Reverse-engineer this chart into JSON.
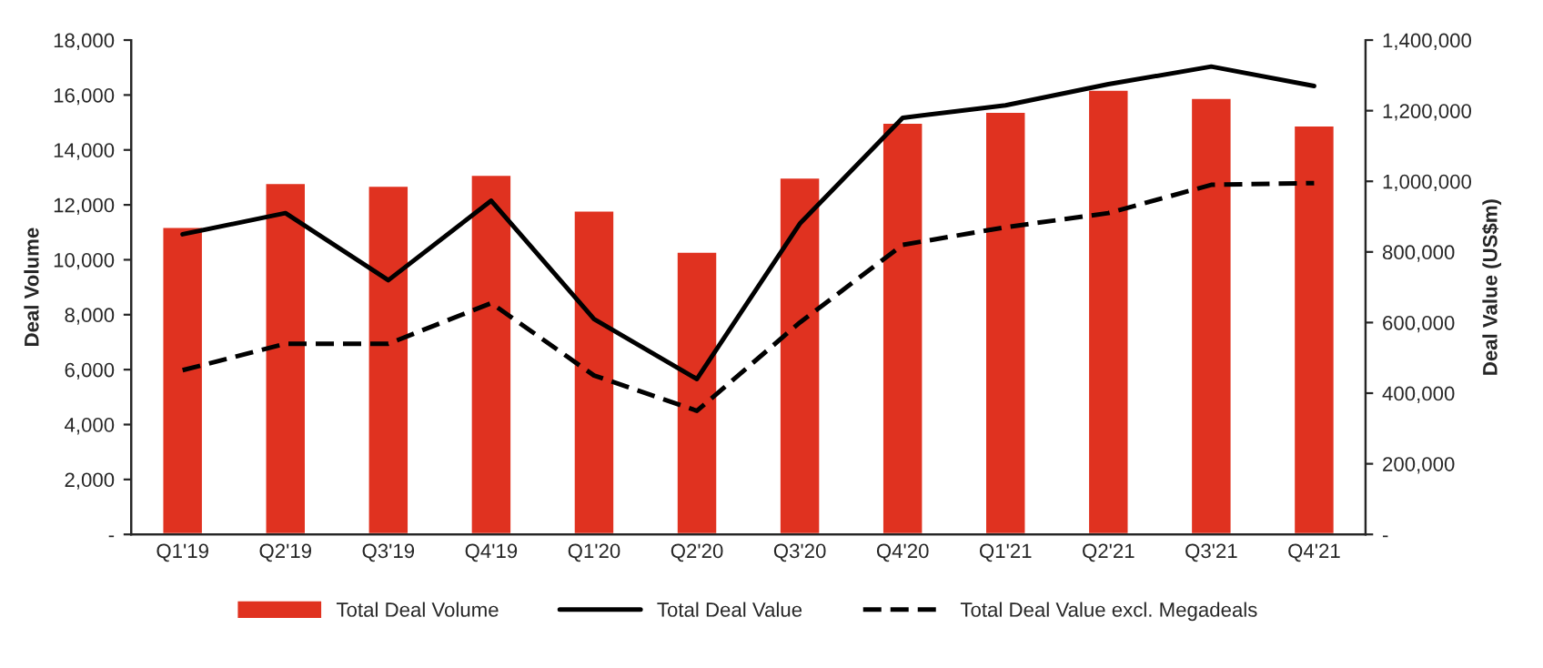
{
  "chart_data": {
    "type": "bar",
    "ylabel": "Deal Volume",
    "y2label": "Deal Value (US$m)",
    "categories": [
      "Q1'19",
      "Q2'19",
      "Q3'19",
      "Q4'19",
      "Q1'20",
      "Q2'20",
      "Q3'20",
      "Q4'20",
      "Q1'21",
      "Q2'21",
      "Q3'21",
      "Q4'21"
    ],
    "series": [
      {
        "name": "Total Deal Volume",
        "color": "#e03220",
        "values": [
          11200,
          12800,
          12700,
          13100,
          11800,
          10300,
          13000,
          15000,
          15400,
          16200,
          15900,
          14900
        ]
      },
      {
        "name": "Total Deal Value",
        "type": "line",
        "axis": "y2",
        "color": "#000000",
        "line_style": "solid",
        "values": [
          850000,
          910000,
          720000,
          945000,
          610000,
          440000,
          880000,
          1180000,
          1215000,
          1275000,
          1325000,
          1270000
        ]
      },
      {
        "name": "Total Deal Value excl. Megadeals",
        "type": "line",
        "axis": "y2",
        "color": "#000000",
        "line_style": "dashed",
        "values": [
          465000,
          540000,
          540000,
          655000,
          450000,
          350000,
          600000,
          820000,
          870000,
          910000,
          990000,
          995000
        ]
      }
    ],
    "ylim": [
      0,
      18000
    ],
    "yticks": [
      {
        "value": 0,
        "label": "-"
      },
      {
        "value": 2000,
        "label": "2,000"
      },
      {
        "value": 4000,
        "label": "4,000"
      },
      {
        "value": 6000,
        "label": "6,000"
      },
      {
        "value": 8000,
        "label": "8,000"
      },
      {
        "value": 10000,
        "label": "10,000"
      },
      {
        "value": 12000,
        "label": "12,000"
      },
      {
        "value": 14000,
        "label": "14,000"
      },
      {
        "value": 16000,
        "label": "16,000"
      },
      {
        "value": 18000,
        "label": "18,000"
      }
    ],
    "y2lim": [
      0,
      1400000
    ],
    "y2ticks": [
      {
        "value": 0,
        "label": "-"
      },
      {
        "value": 200000,
        "label": "200,000"
      },
      {
        "value": 400000,
        "label": "400,000"
      },
      {
        "value": 600000,
        "label": "600,000"
      },
      {
        "value": 800000,
        "label": "800,000"
      },
      {
        "value": 1000000,
        "label": "1,000,000"
      },
      {
        "value": 1200000,
        "label": "1,200,000"
      },
      {
        "value": 1400000,
        "label": "1,400,000"
      }
    ],
    "legend": "bottom",
    "grid": false,
    "marker": "none"
  }
}
